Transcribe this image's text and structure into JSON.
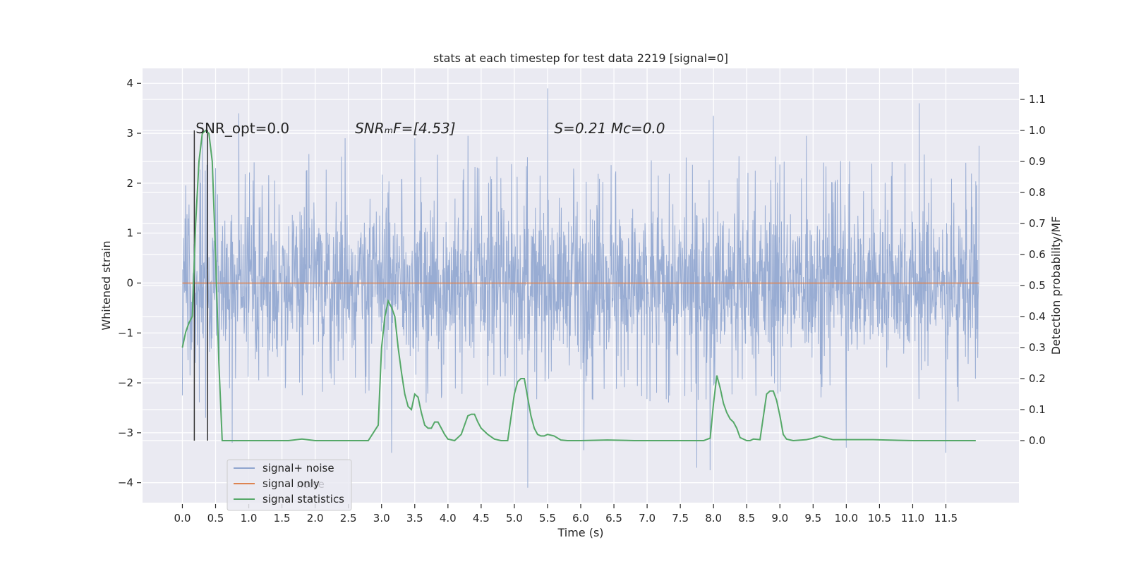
{
  "chart_data": {
    "type": "line",
    "title": "stats at each timestep for test data 2219 [signal=0]",
    "xlabel": "Time (s)",
    "ylabel": "Whitened strain",
    "y2label": "Detection probability/MF",
    "xlim": [
      -0.6,
      12.6
    ],
    "ylim": [
      -4.4,
      4.3
    ],
    "y2lim": [
      -0.2,
      1.2
    ],
    "grid": true,
    "x_ticks": [
      0.0,
      0.5,
      1.0,
      1.5,
      2.0,
      2.5,
      3.0,
      3.5,
      4.0,
      4.5,
      5.0,
      5.5,
      6.0,
      6.5,
      7.0,
      7.5,
      8.0,
      8.5,
      9.0,
      9.5,
      10.0,
      10.5,
      11.0,
      11.5
    ],
    "x_tick_labels": [
      "0.0",
      "0.5",
      "1.0",
      "1.5",
      "2.0",
      "2.5",
      "3.0",
      "3.5",
      "4.0",
      "4.5",
      "5.0",
      "5.5",
      "6.0",
      "6.5",
      "7.0",
      "7.5",
      "8.0",
      "8.5",
      "9.0",
      "9.5",
      "10.0",
      "10.5",
      "11.0",
      "11.5"
    ],
    "y_ticks": [
      4,
      3,
      2,
      1,
      0,
      -1,
      -2,
      -3,
      -4
    ],
    "y_tick_labels": [
      "4",
      "3",
      "2",
      "1",
      "0",
      "−1",
      "−2",
      "−3",
      "−4"
    ],
    "y2_ticks": [
      1.1,
      1.0,
      0.9,
      0.8,
      0.7,
      0.6,
      0.5,
      0.4,
      0.3,
      0.2,
      0.1,
      0.0
    ],
    "y2_tick_labels": [
      "1.1",
      "1.0",
      "0.9",
      "0.8",
      "0.7",
      "0.6",
      "0.5",
      "0.4",
      "0.3",
      "0.2",
      "0.1",
      "0.0"
    ],
    "series": [
      {
        "name": "signal+ noise",
        "color": "#8fa5cf",
        "axis": "left",
        "x_range": [
          0.0,
          12.0
        ],
        "envelope_core": [
          -1.3,
          1.3
        ],
        "envelope_typical": [
          -2.4,
          2.6
        ],
        "notable_peaks": [
          {
            "x": 0.0,
            "y": 2.45
          },
          {
            "x": 0.0,
            "y": -2.25
          },
          {
            "x": 0.3,
            "y": 2.95
          },
          {
            "x": 0.35,
            "y": -2.7
          },
          {
            "x": 0.75,
            "y": -3.2
          },
          {
            "x": 0.85,
            "y": 3.4
          },
          {
            "x": 2.45,
            "y": 2.9
          },
          {
            "x": 3.15,
            "y": -3.4
          },
          {
            "x": 3.5,
            "y": 2.9
          },
          {
            "x": 4.3,
            "y": 2.95
          },
          {
            "x": 5.2,
            "y": -4.1
          },
          {
            "x": 5.5,
            "y": 3.9
          },
          {
            "x": 6.05,
            "y": -3.35
          },
          {
            "x": 7.75,
            "y": -3.7
          },
          {
            "x": 7.95,
            "y": -3.75
          },
          {
            "x": 8.0,
            "y": 3.35
          },
          {
            "x": 9.4,
            "y": 2.95
          },
          {
            "x": 10.0,
            "y": -3.3
          },
          {
            "x": 11.1,
            "y": 3.6
          },
          {
            "x": 11.5,
            "y": -3.4
          },
          {
            "x": 12.0,
            "y": 2.75
          }
        ]
      },
      {
        "name": "signal only",
        "color": "#dd8452",
        "axis": "left",
        "x": [
          0.0,
          12.0
        ],
        "values": [
          0.0,
          0.0
        ]
      },
      {
        "name": "signal statistics",
        "color": "#55a868",
        "axis": "right",
        "x": [
          0.0,
          0.05,
          0.1,
          0.15,
          0.2,
          0.25,
          0.3,
          0.35,
          0.4,
          0.45,
          0.5,
          0.55,
          0.6,
          0.8,
          1.2,
          1.6,
          1.8,
          2.0,
          2.2,
          2.5,
          2.8,
          2.95,
          3.0,
          3.05,
          3.1,
          3.15,
          3.2,
          3.25,
          3.3,
          3.35,
          3.4,
          3.45,
          3.5,
          3.55,
          3.6,
          3.65,
          3.7,
          3.75,
          3.8,
          3.85,
          3.9,
          3.95,
          4.0,
          4.1,
          4.2,
          4.3,
          4.35,
          4.4,
          4.45,
          4.5,
          4.6,
          4.7,
          4.8,
          4.9,
          5.0,
          5.05,
          5.1,
          5.15,
          5.2,
          5.25,
          5.3,
          5.35,
          5.4,
          5.45,
          5.5,
          5.6,
          5.7,
          5.8,
          6.0,
          6.4,
          6.8,
          7.2,
          7.6,
          7.85,
          7.95,
          8.0,
          8.05,
          8.1,
          8.15,
          8.2,
          8.25,
          8.3,
          8.35,
          8.4,
          8.5,
          8.55,
          8.6,
          8.7,
          8.8,
          8.85,
          8.9,
          8.95,
          9.0,
          9.05,
          9.1,
          9.2,
          9.4,
          9.5,
          9.6,
          9.7,
          9.8,
          10.0,
          10.4,
          10.6,
          11.0,
          11.5,
          11.95
        ],
        "values": [
          0.3,
          0.35,
          0.38,
          0.4,
          0.7,
          0.9,
          0.99,
          1.0,
          0.99,
          0.9,
          0.6,
          0.25,
          0.0,
          0.0,
          0.0,
          0.0,
          0.005,
          0.0,
          0.0,
          0.0,
          0.0,
          0.05,
          0.3,
          0.4,
          0.45,
          0.43,
          0.4,
          0.3,
          0.22,
          0.15,
          0.11,
          0.1,
          0.15,
          0.14,
          0.09,
          0.05,
          0.04,
          0.04,
          0.06,
          0.06,
          0.04,
          0.02,
          0.005,
          0.0,
          0.02,
          0.08,
          0.085,
          0.085,
          0.06,
          0.04,
          0.02,
          0.005,
          0.0,
          0.0,
          0.15,
          0.19,
          0.2,
          0.2,
          0.14,
          0.08,
          0.04,
          0.02,
          0.015,
          0.015,
          0.02,
          0.015,
          0.002,
          0.0,
          0.0,
          0.002,
          0.0,
          0.0,
          0.0,
          0.0,
          0.008,
          0.12,
          0.21,
          0.17,
          0.12,
          0.09,
          0.07,
          0.06,
          0.04,
          0.01,
          0.0,
          0.0,
          0.005,
          0.003,
          0.15,
          0.16,
          0.16,
          0.13,
          0.08,
          0.02,
          0.005,
          0.0,
          0.003,
          0.008,
          0.015,
          0.009,
          0.003,
          0.003,
          0.003,
          0.002,
          0.0,
          0.0,
          0.0
        ]
      }
    ],
    "vlines": [
      {
        "x": 0.18,
        "color": "#333333"
      },
      {
        "x": 0.38,
        "color": "#333333"
      }
    ],
    "annotations": [
      {
        "x": 0.2,
        "y": 3.0,
        "text": "SNR_opt=0.0"
      },
      {
        "x": 2.6,
        "y": 3.0,
        "text": "SNRₘF=[4.53]"
      },
      {
        "x": 5.6,
        "y": 3.0,
        "text": "S=0.21   Mᴄ=0.0"
      }
    ],
    "legend": {
      "placement": "lower-left",
      "entries": [
        "signal+ noise",
        "signal only",
        "signal statistics"
      ],
      "ghost_text": "noise"
    }
  }
}
